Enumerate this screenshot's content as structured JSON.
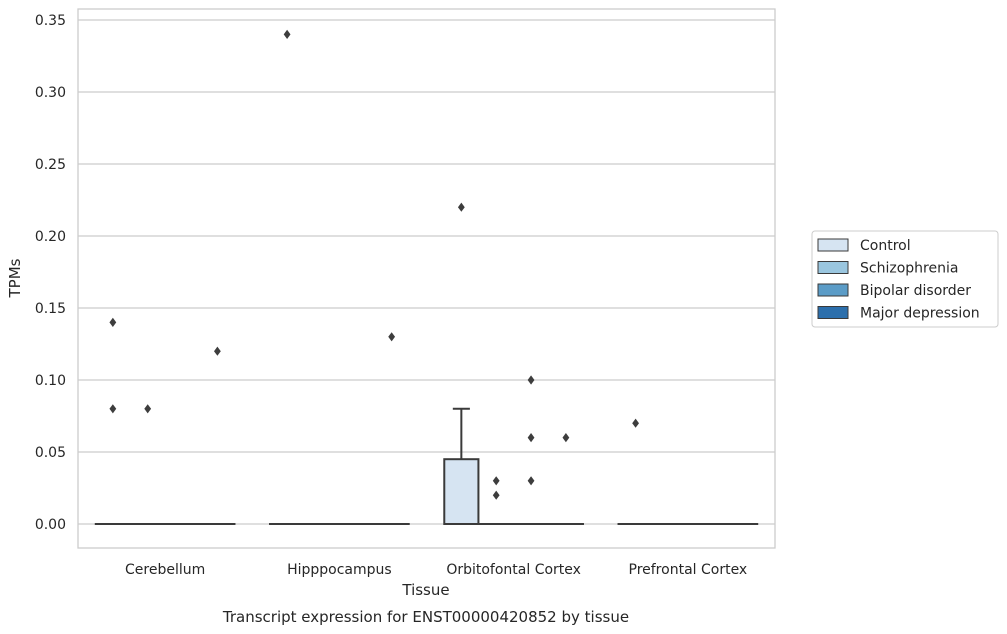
{
  "chart_data": {
    "type": "box",
    "xlabel": "Tissue",
    "ylabel": "TPMs",
    "caption": "Transcript expression for ENST00000420852 by tissue",
    "ylim": [
      -0.017,
      0.357
    ],
    "yticks": [
      0.0,
      0.05,
      0.1,
      0.15,
      0.2,
      0.25,
      0.3,
      0.35
    ],
    "ytick_labels": [
      "0.00",
      "0.05",
      "0.10",
      "0.15",
      "0.20",
      "0.25",
      "0.30",
      "0.35"
    ],
    "grid": "horizontal",
    "legend_position": "right",
    "categories": [
      "Cerebellum",
      "Hipppocampus",
      "Orbitofontal Cortex",
      "Prefrontal Cortex"
    ],
    "series": [
      {
        "name": "Control",
        "color": "#d6e4f2",
        "boxes": [
          {
            "q1": 0,
            "median": 0,
            "q3": 0,
            "whisker_low": 0,
            "whisker_high": 0,
            "outliers": [
              0.14,
              0.08
            ]
          },
          {
            "q1": 0,
            "median": 0,
            "q3": 0,
            "whisker_low": 0,
            "whisker_high": 0,
            "outliers": [
              0.34
            ]
          },
          {
            "q1": 0,
            "median": 0,
            "q3": 0.045,
            "whisker_low": 0,
            "whisker_high": 0.08,
            "outliers": [
              0.22
            ]
          },
          {
            "q1": 0,
            "median": 0,
            "q3": 0,
            "whisker_low": 0,
            "whisker_high": 0,
            "outliers": [
              0.07
            ]
          }
        ]
      },
      {
        "name": "Schizophrenia",
        "color": "#9ac6df",
        "boxes": [
          {
            "q1": 0,
            "median": 0,
            "q3": 0,
            "whisker_low": 0,
            "whisker_high": 0,
            "outliers": [
              0.08
            ]
          },
          {
            "q1": 0,
            "median": 0,
            "q3": 0,
            "whisker_low": 0,
            "whisker_high": 0,
            "outliers": []
          },
          {
            "q1": 0,
            "median": 0,
            "q3": 0,
            "whisker_low": 0,
            "whisker_high": 0,
            "outliers": [
              0.03,
              0.02
            ]
          },
          {
            "q1": 0,
            "median": 0,
            "q3": 0,
            "whisker_low": 0,
            "whisker_high": 0,
            "outliers": []
          }
        ]
      },
      {
        "name": "Bipolar disorder",
        "color": "#5b9cc7",
        "boxes": [
          {
            "q1": 0,
            "median": 0,
            "q3": 0,
            "whisker_low": 0,
            "whisker_high": 0,
            "outliers": []
          },
          {
            "q1": 0,
            "median": 0,
            "q3": 0,
            "whisker_low": 0,
            "whisker_high": 0,
            "outliers": []
          },
          {
            "q1": 0,
            "median": 0,
            "q3": 0,
            "whisker_low": 0,
            "whisker_high": 0,
            "outliers": [
              0.1,
              0.06,
              0.03
            ]
          },
          {
            "q1": 0,
            "median": 0,
            "q3": 0,
            "whisker_low": 0,
            "whisker_high": 0,
            "outliers": []
          }
        ]
      },
      {
        "name": "Major depression",
        "color": "#2c6fac",
        "boxes": [
          {
            "q1": 0,
            "median": 0,
            "q3": 0,
            "whisker_low": 0,
            "whisker_high": 0,
            "outliers": [
              0.12
            ]
          },
          {
            "q1": 0,
            "median": 0,
            "q3": 0,
            "whisker_low": 0,
            "whisker_high": 0,
            "outliers": [
              0.13
            ]
          },
          {
            "q1": 0,
            "median": 0,
            "q3": 0,
            "whisker_low": 0,
            "whisker_high": 0,
            "outliers": [
              0.06
            ]
          },
          {
            "q1": 0,
            "median": 0,
            "q3": 0,
            "whisker_low": 0,
            "whisker_high": 0,
            "outliers": []
          }
        ]
      }
    ]
  }
}
